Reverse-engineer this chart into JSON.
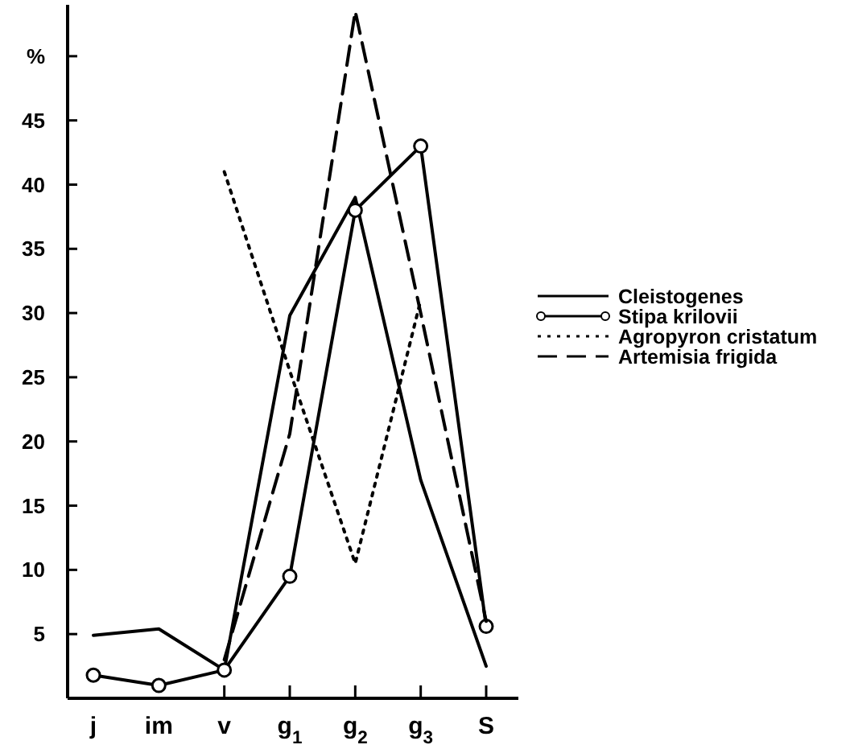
{
  "chart_data": {
    "type": "line",
    "categories": [
      "j",
      "im",
      "v",
      "g$_{1}$",
      "g$_{2}$",
      "g$_{3}$",
      "S"
    ],
    "ylim": [
      0,
      54
    ],
    "yticks": [
      5,
      10,
      15,
      20,
      25,
      30,
      35,
      40,
      45,
      {
        "value": 50,
        "label": "%"
      }
    ],
    "legend": "right",
    "grid": false,
    "series": [
      {
        "name": "Cleistogenes",
        "color": "#000000",
        "marker": "none",
        "line_style": "solid",
        "values": [
          4.9,
          5.4,
          2.2,
          29.8,
          39,
          17,
          2.5
        ]
      },
      {
        "name": "Stipa krilovii",
        "color": "#000000",
        "marker": "circle",
        "line_style": "solid",
        "values": [
          1.8,
          1,
          2.2,
          9.5,
          38,
          43,
          5.6
        ]
      },
      {
        "name": "Agropyron cristatum",
        "color": "#000000",
        "marker": "none",
        "line_style": "dotted",
        "values": [
          null,
          null,
          41,
          25.5,
          10.5,
          31,
          null
        ]
      },
      {
        "name": "Artemisia frigida",
        "color": "#000000",
        "marker": "none",
        "line_style": "dashed",
        "values": [
          null,
          null,
          3,
          20.6,
          53.5,
          30,
          6
        ]
      }
    ]
  }
}
